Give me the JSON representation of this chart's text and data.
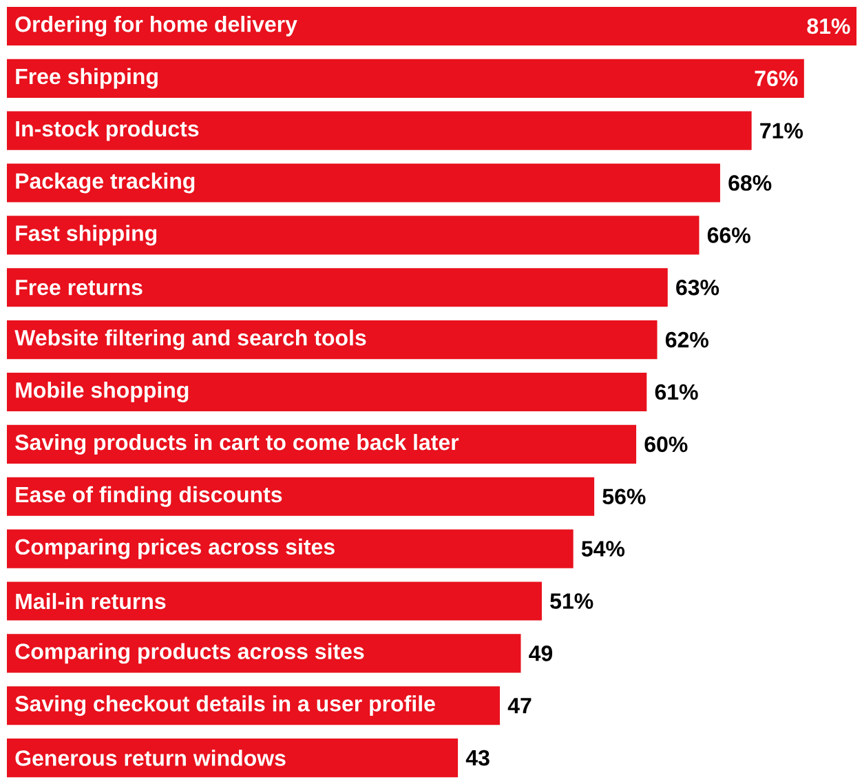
{
  "chart_data": {
    "type": "bar",
    "orientation": "horizontal",
    "color": "#e8111d",
    "categories": [
      "Ordering for home delivery",
      "Free shipping",
      "In-stock products",
      "Package tracking",
      "Fast shipping",
      "Free returns",
      "Website filtering and search tools",
      "Mobile shopping",
      "Saving products in cart to come back later",
      "Ease of finding discounts",
      "Comparing prices across sites",
      "Mail-in returns",
      "Comparing products across sites",
      "Saving checkout details in a user profile",
      "Generous return windows"
    ],
    "values": [
      81,
      76,
      71,
      68,
      66,
      63,
      62,
      61,
      60,
      56,
      54,
      51,
      49,
      47,
      43
    ],
    "value_labels": [
      "81%",
      "76%",
      "71%",
      "68%",
      "66%",
      "63%",
      "62%",
      "61%",
      "60%",
      "56%",
      "54%",
      "51%",
      "49",
      "47",
      "43"
    ]
  }
}
